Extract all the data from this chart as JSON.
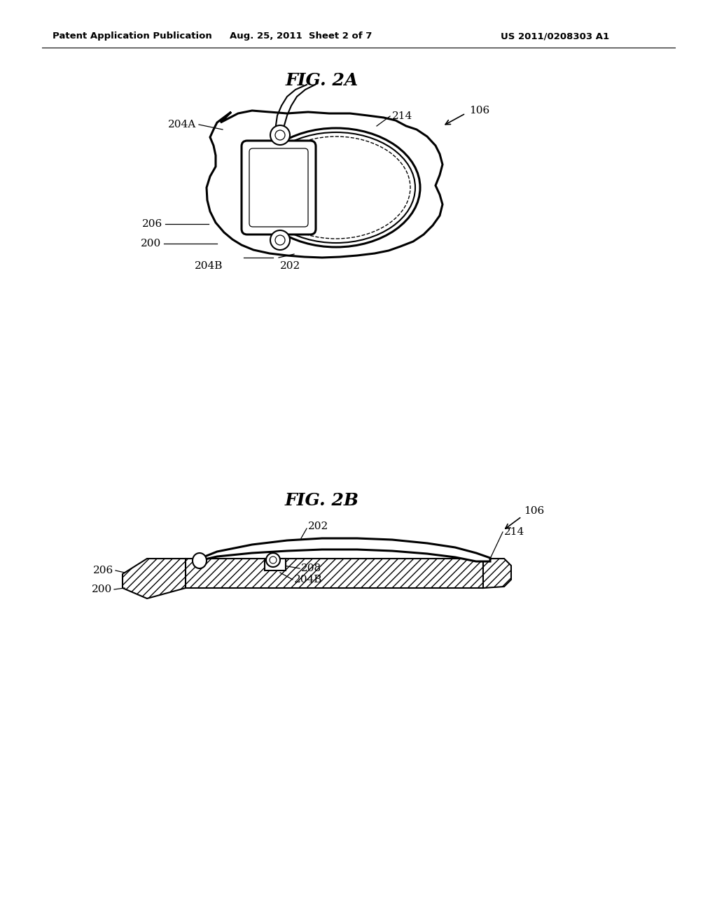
{
  "bg_color": "#ffffff",
  "line_color": "#000000",
  "header_left": "Patent Application Publication",
  "header_center": "Aug. 25, 2011  Sheet 2 of 7",
  "header_right": "US 2011/0208303 A1",
  "fig2a_title": "FIG. 2A",
  "fig2b_title": "FIG. 2B"
}
